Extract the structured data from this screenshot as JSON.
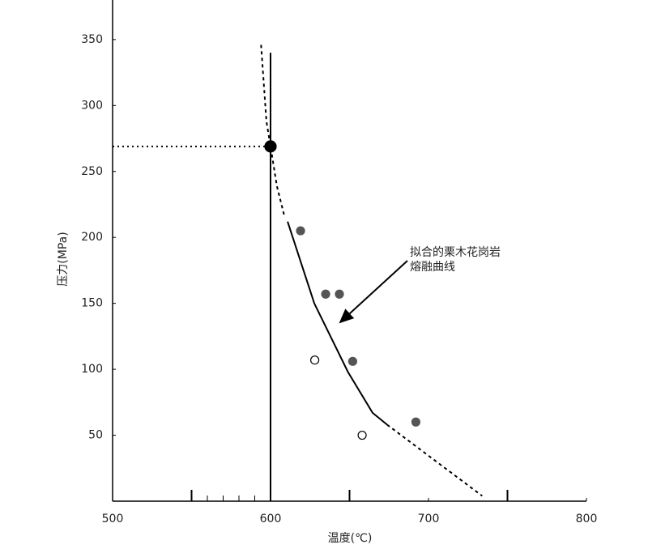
{
  "chart_data": {
    "type": "scatter",
    "xlabel": "温度(℃)",
    "ylabel": "压力(MPa)",
    "xlim": [
      500,
      800
    ],
    "ylim": [
      0,
      380
    ],
    "xticks": [
      500,
      600,
      700,
      800
    ],
    "x_major_marks": [
      550,
      650,
      750
    ],
    "x_minor_marks": [
      560,
      570,
      580,
      590
    ],
    "yticks": [
      50,
      100,
      150,
      200,
      250,
      300,
      350
    ],
    "lines": [
      {
        "style": "solid",
        "color": "#000000",
        "x": [
          600,
          600
        ],
        "y": [
          0,
          340
        ]
      },
      {
        "style": "dotted",
        "color": "#000000",
        "x": [
          500,
          600
        ],
        "y": [
          269,
          269
        ]
      },
      {
        "style": "dashed",
        "color": "#000000",
        "x": [
          594,
          597.4,
          600,
          604,
          609
        ],
        "y": [
          346,
          288,
          269,
          239,
          215
        ]
      },
      {
        "style": "solid",
        "color": "#000000",
        "x": [
          610.8,
          627.7,
          649,
          664.6,
          673.8
        ],
        "y": [
          212,
          150,
          98,
          67,
          58
        ]
      },
      {
        "style": "dashed",
        "color": "#000000",
        "x": [
          673.8,
          734
        ],
        "y": [
          58,
          4
        ]
      }
    ],
    "series": [
      {
        "marker": "filled",
        "color": "#555555",
        "size": 5,
        "x": [
          619,
          634.9,
          643.6,
          652,
          692
        ],
        "values": [
          205,
          157,
          157,
          106,
          60
        ]
      },
      {
        "marker": "open",
        "color": "#000000",
        "size": 5,
        "x": [
          628,
          658
        ],
        "values": [
          107,
          50
        ]
      },
      {
        "marker": "filled",
        "color": "#000000",
        "size": 7,
        "x": [
          600
        ],
        "values": [
          269
        ]
      }
    ],
    "annotation": [
      "拟合的栗木花岗岩",
      "熔融曲线"
    ]
  }
}
